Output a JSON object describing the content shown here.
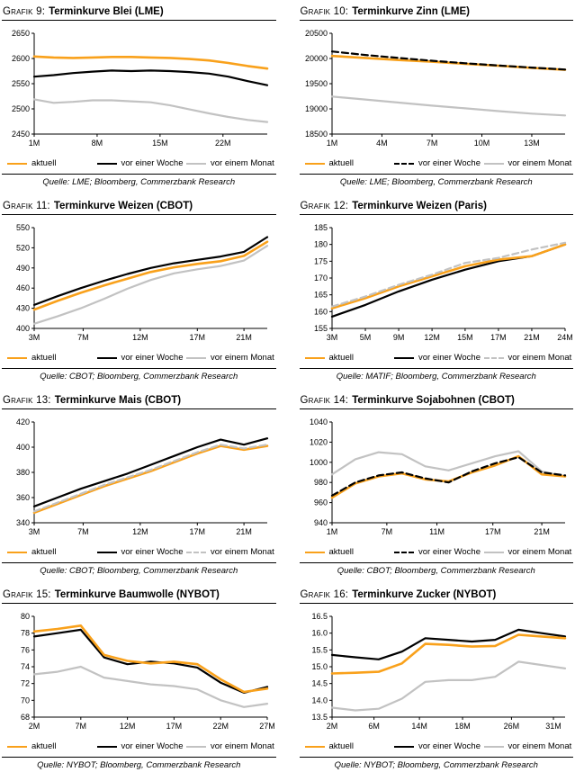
{
  "chart_data": [
    {
      "label": "Grafik 9:",
      "title": "Terminkurve Blei (LME)",
      "source": "Quelle: LME; Bloomberg, Commerzbank Research",
      "type": "line",
      "ylim": [
        2450,
        2650
      ],
      "y_ticks": [
        "2450",
        "2500",
        "2550",
        "2600",
        "2650"
      ],
      "x_ticks": [
        {
          "label": "1M",
          "pos": 0.0
        },
        {
          "label": "8M",
          "pos": 0.27
        },
        {
          "label": "15M",
          "pos": 0.54
        },
        {
          "label": "22M",
          "pos": 0.81
        }
      ],
      "legend": [
        {
          "label": "aktuell",
          "color": "#F9A11B",
          "dash": false
        },
        {
          "label": "vor einer Woche",
          "color": "#000000",
          "dash": false
        },
        {
          "label": "vor einem Monat",
          "color": "#C2C2C2",
          "dash": false
        }
      ],
      "series": [
        {
          "name": "vor einem Monat",
          "color": "#C2C2C2",
          "dash": false,
          "width": 2.2,
          "values": [
            2519,
            2512,
            2514,
            2517,
            2517,
            2515,
            2513,
            2507,
            2499,
            2491,
            2484,
            2478,
            2474
          ]
        },
        {
          "name": "vor einer Woche",
          "color": "#000000",
          "dash": false,
          "width": 2.2,
          "values": [
            2564,
            2567,
            2571,
            2574,
            2576,
            2575,
            2576,
            2575,
            2573,
            2570,
            2564,
            2555,
            2547
          ]
        },
        {
          "name": "aktuell",
          "color": "#F9A11B",
          "dash": false,
          "width": 2.6,
          "values": [
            2604,
            2602,
            2601,
            2602,
            2603,
            2603,
            2602,
            2601,
            2599,
            2596,
            2591,
            2585,
            2580
          ]
        }
      ]
    },
    {
      "label": "Grafik 10:",
      "title": "Terminkurve Zinn (LME)",
      "source": "Quelle: LME; Bloomberg, Commerzbank Research",
      "type": "line",
      "ylim": [
        18500,
        20500
      ],
      "y_ticks": [
        "18500",
        "19000",
        "19500",
        "20000",
        "20500"
      ],
      "x_ticks": [
        {
          "label": "1M",
          "pos": 0.0
        },
        {
          "label": "4M",
          "pos": 0.214
        },
        {
          "label": "7M",
          "pos": 0.429
        },
        {
          "label": "10M",
          "pos": 0.643
        },
        {
          "label": "13M",
          "pos": 0.857
        }
      ],
      "legend": [
        {
          "label": "aktuell",
          "color": "#F9A11B",
          "dash": false
        },
        {
          "label": "vor einer Woche",
          "color": "#000000",
          "dash": true
        },
        {
          "label": "vor einem Monat",
          "color": "#C2C2C2",
          "dash": false
        }
      ],
      "series": [
        {
          "name": "vor einem Monat",
          "color": "#C2C2C2",
          "dash": false,
          "width": 2.2,
          "values": [
            19245,
            19185,
            19125,
            19065,
            19010,
            18955,
            18905,
            18870
          ]
        },
        {
          "name": "aktuell",
          "color": "#F9A11B",
          "dash": false,
          "width": 2.6,
          "values": [
            20050,
            20010,
            19970,
            19935,
            19895,
            19855,
            19815,
            19775
          ]
        },
        {
          "name": "vor einer Woche",
          "color": "#000000",
          "dash": true,
          "width": 2.2,
          "values": [
            20140,
            20070,
            20010,
            19955,
            19905,
            19860,
            19820,
            19780
          ]
        }
      ]
    },
    {
      "label": "Grafik 11:",
      "title": "Terminkurve Weizen (CBOT)",
      "source": "Quelle: CBOT; Bloomberg, Commerzbank Research",
      "type": "line",
      "ylim": [
        400,
        550
      ],
      "y_ticks": [
        "400",
        "430",
        "460",
        "490",
        "520",
        "550"
      ],
      "x_ticks": [
        {
          "label": "3M",
          "pos": 0.0
        },
        {
          "label": "7M",
          "pos": 0.21
        },
        {
          "label": "12M",
          "pos": 0.455
        },
        {
          "label": "17M",
          "pos": 0.7
        },
        {
          "label": "21M",
          "pos": 0.9
        }
      ],
      "legend": [
        {
          "label": "aktuell",
          "color": "#F9A11B",
          "dash": false
        },
        {
          "label": "vor einer Woche",
          "color": "#000000",
          "dash": false
        },
        {
          "label": "vor einem Monat",
          "color": "#C2C2C2",
          "dash": false
        }
      ],
      "series": [
        {
          "name": "vor einem Monat",
          "color": "#C2C2C2",
          "dash": false,
          "width": 2.2,
          "values": [
            407,
            418,
            430,
            444,
            459,
            472,
            482,
            488,
            493,
            501,
            523
          ]
        },
        {
          "name": "vor einer Woche",
          "color": "#000000",
          "dash": false,
          "width": 2.2,
          "values": [
            435,
            448,
            460,
            471,
            481,
            490,
            497,
            502,
            507,
            514,
            536
          ]
        },
        {
          "name": "aktuell",
          "color": "#F9A11B",
          "dash": false,
          "width": 2.6,
          "values": [
            428,
            441,
            453,
            464,
            474,
            484,
            491,
            496,
            500,
            508,
            529
          ]
        }
      ]
    },
    {
      "label": "Grafik 12:",
      "title": "Terminkurve Weizen (Paris)",
      "source": "Quelle: MATIF; Bloomberg, Commerzbank Research",
      "type": "line",
      "ylim": [
        155,
        185
      ],
      "y_ticks": [
        "155",
        "160",
        "165",
        "170",
        "175",
        "180",
        "185"
      ],
      "x_ticks": [
        {
          "label": "3M",
          "pos": 0.0
        },
        {
          "label": "5M",
          "pos": 0.143
        },
        {
          "label": "9M",
          "pos": 0.286
        },
        {
          "label": "12M",
          "pos": 0.429
        },
        {
          "label": "15M",
          "pos": 0.571
        },
        {
          "label": "17M",
          "pos": 0.714
        },
        {
          "label": "21M",
          "pos": 0.857
        },
        {
          "label": "24M",
          "pos": 1.0
        }
      ],
      "legend": [
        {
          "label": "aktuell",
          "color": "#F9A11B",
          "dash": false
        },
        {
          "label": "vor einer Woche",
          "color": "#000000",
          "dash": false
        },
        {
          "label": "vor einem Monat",
          "color": "#C2C2C2",
          "dash": true
        }
      ],
      "series": [
        {
          "name": "vor einer Woche",
          "color": "#000000",
          "dash": false,
          "width": 2.2,
          "values": [
            158.5,
            162,
            166,
            169.5,
            172.5,
            175,
            176.5,
            180
          ]
        },
        {
          "name": "aktuell",
          "color": "#F9A11B",
          "dash": false,
          "width": 2.6,
          "values": [
            161,
            164,
            167.5,
            170.5,
            173.5,
            175.5,
            176.5,
            180
          ]
        },
        {
          "name": "vor einem Monat",
          "color": "#C2C2C2",
          "dash": true,
          "width": 2.2,
          "values": [
            161.5,
            164.5,
            168,
            171,
            174.5,
            176,
            178.5,
            180.5
          ]
        }
      ]
    },
    {
      "label": "Grafik 13:",
      "title": "Terminkurve Mais (CBOT)",
      "source": "Quelle: CBOT; Bloomberg, Commerzbank Research",
      "type": "line",
      "ylim": [
        340,
        420
      ],
      "y_ticks": [
        "340",
        "360",
        "380",
        "400",
        "420"
      ],
      "x_ticks": [
        {
          "label": "3M",
          "pos": 0.0
        },
        {
          "label": "7M",
          "pos": 0.21
        },
        {
          "label": "12M",
          "pos": 0.455
        },
        {
          "label": "17M",
          "pos": 0.7
        },
        {
          "label": "21M",
          "pos": 0.9
        }
      ],
      "legend": [
        {
          "label": "aktuell",
          "color": "#F9A11B",
          "dash": false
        },
        {
          "label": "vor einer Woche",
          "color": "#000000",
          "dash": false
        },
        {
          "label": "vor einem Monat",
          "color": "#C2C2C2",
          "dash": true
        }
      ],
      "series": [
        {
          "name": "vor einer Woche",
          "color": "#000000",
          "dash": false,
          "width": 2.2,
          "values": [
            353,
            360,
            367,
            373,
            379,
            386,
            393,
            400,
            406,
            402,
            407
          ]
        },
        {
          "name": "aktuell",
          "color": "#F9A11B",
          "dash": false,
          "width": 2.6,
          "values": [
            348,
            355,
            362,
            369,
            375,
            381,
            388,
            395,
            401,
            398,
            401
          ]
        },
        {
          "name": "vor einem Monat",
          "color": "#C2C2C2",
          "dash": true,
          "width": 2.2,
          "values": [
            349,
            356,
            363,
            370,
            376,
            382,
            389,
            396,
            402,
            399,
            402
          ]
        }
      ]
    },
    {
      "label": "Grafik 14:",
      "title": "Terminkurve Sojabohnen (CBOT)",
      "source": "Quelle: CBOT; Bloomberg, Commerzbank Research",
      "type": "line",
      "ylim": [
        940,
        1040
      ],
      "y_ticks": [
        "940",
        "960",
        "980",
        "1000",
        "1020",
        "1040"
      ],
      "x_ticks": [
        {
          "label": "1M",
          "pos": 0.0
        },
        {
          "label": "7M",
          "pos": 0.235
        },
        {
          "label": "11M",
          "pos": 0.45
        },
        {
          "label": "17M",
          "pos": 0.69
        },
        {
          "label": "21M",
          "pos": 0.9
        }
      ],
      "legend": [
        {
          "label": "aktuell",
          "color": "#F9A11B",
          "dash": false
        },
        {
          "label": "vor einer Woche",
          "color": "#000000",
          "dash": true
        },
        {
          "label": "vor einem Monat",
          "color": "#C2C2C2",
          "dash": false
        }
      ],
      "series": [
        {
          "name": "vor einem Monat",
          "color": "#C2C2C2",
          "dash": false,
          "width": 2.2,
          "values": [
            988,
            1003,
            1010,
            1008,
            996,
            992,
            999,
            1006,
            1011,
            991,
            986
          ]
        },
        {
          "name": "aktuell",
          "color": "#F9A11B",
          "dash": false,
          "width": 2.6,
          "values": [
            965,
            979,
            986,
            989,
            983,
            981,
            990,
            997,
            1006,
            988,
            986
          ]
        },
        {
          "name": "vor einer Woche",
          "color": "#000000",
          "dash": true,
          "width": 2.2,
          "values": [
            967,
            980,
            987,
            990,
            984,
            980,
            991,
            999,
            1005,
            990,
            987
          ]
        }
      ]
    },
    {
      "label": "Grafik 15:",
      "title": "Terminkurve Baumwolle (NYBOT)",
      "source": "Quelle: NYBOT; Bloomberg, Commerzbank Research",
      "type": "line",
      "ylim": [
        68,
        80
      ],
      "y_ticks": [
        "68",
        "70",
        "72",
        "74",
        "76",
        "78",
        "80"
      ],
      "x_ticks": [
        {
          "label": "2M",
          "pos": 0.0
        },
        {
          "label": "7M",
          "pos": 0.2
        },
        {
          "label": "12M",
          "pos": 0.4
        },
        {
          "label": "17M",
          "pos": 0.6
        },
        {
          "label": "22M",
          "pos": 0.8
        },
        {
          "label": "27M",
          "pos": 1.0
        }
      ],
      "legend": [
        {
          "label": "aktuell",
          "color": "#F9A11B",
          "dash": false
        },
        {
          "label": "vor einer Woche",
          "color": "#000000",
          "dash": false
        },
        {
          "label": "vor einem Monat",
          "color": "#C2C2C2",
          "dash": false
        }
      ],
      "series": [
        {
          "name": "vor einem Monat",
          "color": "#C2C2C2",
          "dash": false,
          "width": 2.2,
          "values": [
            73.1,
            73.4,
            74.0,
            72.7,
            72.3,
            71.9,
            71.7,
            71.3,
            70.0,
            69.2,
            69.6
          ]
        },
        {
          "name": "vor einer Woche",
          "color": "#000000",
          "dash": false,
          "width": 2.2,
          "values": [
            77.6,
            78.0,
            78.4,
            75.1,
            74.3,
            74.6,
            74.4,
            73.9,
            72.1,
            70.9,
            71.6
          ]
        },
        {
          "name": "aktuell",
          "color": "#F9A11B",
          "dash": false,
          "width": 2.6,
          "values": [
            78.2,
            78.5,
            78.9,
            75.4,
            74.7,
            74.4,
            74.6,
            74.3,
            72.5,
            71.0,
            71.4
          ]
        }
      ]
    },
    {
      "label": "Grafik 16:",
      "title": "Terminkurve Zucker (NYBOT)",
      "source": "Quelle: NYBOT; Bloomberg, Commerzbank Research",
      "type": "line",
      "ylim": [
        13.5,
        16.5
      ],
      "y_ticks": [
        "13.5",
        "14.0",
        "14.5",
        "15.0",
        "15.5",
        "16.0",
        "16.5"
      ],
      "x_ticks": [
        {
          "label": "2M",
          "pos": 0.0
        },
        {
          "label": "6M",
          "pos": 0.18
        },
        {
          "label": "14M",
          "pos": 0.375
        },
        {
          "label": "18M",
          "pos": 0.56
        },
        {
          "label": "26M",
          "pos": 0.77
        },
        {
          "label": "31M",
          "pos": 0.95
        }
      ],
      "legend": [
        {
          "label": "aktuell",
          "color": "#F9A11B",
          "dash": false
        },
        {
          "label": "vor einer Woche",
          "color": "#000000",
          "dash": false
        },
        {
          "label": "vor einem Monat",
          "color": "#C2C2C2",
          "dash": false
        }
      ],
      "series": [
        {
          "name": "vor einem Monat",
          "color": "#C2C2C2",
          "dash": false,
          "width": 2.2,
          "values": [
            13.78,
            13.7,
            13.75,
            14.05,
            14.55,
            14.6,
            14.6,
            14.7,
            15.15,
            15.05,
            14.95
          ]
        },
        {
          "name": "vor einer Woche",
          "color": "#000000",
          "dash": false,
          "width": 2.2,
          "values": [
            15.35,
            15.28,
            15.22,
            15.45,
            15.85,
            15.8,
            15.75,
            15.8,
            16.1,
            16.0,
            15.9
          ]
        },
        {
          "name": "aktuell",
          "color": "#F9A11B",
          "dash": false,
          "width": 2.6,
          "values": [
            14.8,
            14.82,
            14.85,
            15.1,
            15.68,
            15.65,
            15.6,
            15.62,
            15.95,
            15.9,
            15.85
          ]
        }
      ]
    }
  ]
}
